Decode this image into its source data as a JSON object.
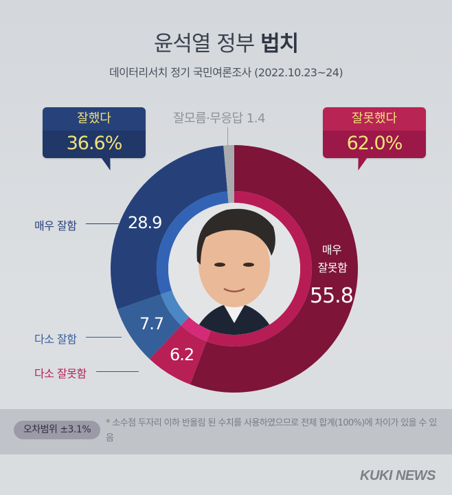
{
  "header": {
    "title_regular": "윤석열 정부 ",
    "title_bold": "법치",
    "subtitle": "데이터리서치 정기 국민여론조사 (2022.10.23~24)"
  },
  "bubbles": {
    "good": {
      "label": "잘했다",
      "value": "36.6%"
    },
    "bad": {
      "label": "잘못했다",
      "value": "62.0%"
    }
  },
  "dont_know": {
    "label": "잘모름·무응답 1.4"
  },
  "segments": {
    "very_good": {
      "label": "매우 잘함",
      "value": "28.9",
      "color": "#26417a"
    },
    "some_good": {
      "label": "다소 잘함",
      "value": "7.7",
      "color": "#355f99"
    },
    "some_bad": {
      "label": "다소 잘못함",
      "value": "6.2",
      "color": "#b71f55"
    },
    "very_bad": {
      "label_line1": "매우",
      "label_line2": "잘못함",
      "value": "55.8",
      "color": "#7e1438"
    },
    "dont_know": {
      "color": "#a9abae"
    }
  },
  "footer": {
    "margin_of_error": "오차범위 ±3.1%",
    "note": "* 소수점 두자리 이하 반올림 된 수치를 사용하였으므로 전체 합계(100%)에 차이가 있을 수 있음",
    "brand": "KUKI NEWS"
  },
  "chart_data": {
    "type": "pie",
    "title": "윤석열 정부 법치",
    "subtitle": "데이터리서치 정기 국민여론조사 (2022.10.23~24)",
    "categories": [
      "매우 잘못함",
      "다소 잘못함",
      "다소 잘함",
      "매우 잘함",
      "잘모름·무응답"
    ],
    "values": [
      55.8,
      6.2,
      7.7,
      28.9,
      1.4
    ],
    "colors": [
      "#7e1438",
      "#b71f55",
      "#355f99",
      "#26417a",
      "#a9abae"
    ],
    "groups": [
      {
        "name": "잘했다",
        "value": 36.6,
        "members": [
          "매우 잘함",
          "다소 잘함"
        ]
      },
      {
        "name": "잘못했다",
        "value": 62.0,
        "members": [
          "매우 잘못함",
          "다소 잘못함"
        ]
      }
    ],
    "style": "donut",
    "start_angle": "12 o'clock, clockwise",
    "unit": "%",
    "margin_of_error": "±3.1%"
  }
}
